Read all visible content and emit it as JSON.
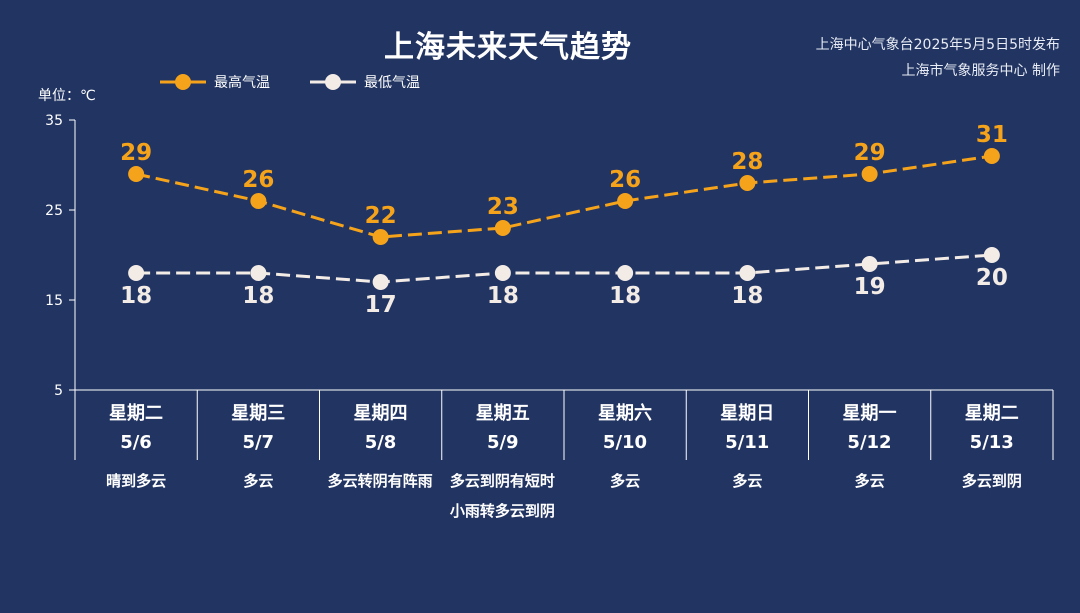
{
  "header": {
    "title": "上海未来天气趋势",
    "credit_line1": "上海中心气象台2025年5月5日5时发布",
    "credit_line2": "上海市气象服务中心 制作",
    "unit": "单位：℃"
  },
  "colors": {
    "background": "#223462",
    "high": "#f5a31a",
    "low": "#f3ebe6",
    "axis": "#ffffff"
  },
  "chart_data": {
    "type": "line",
    "title": "上海未来天气趋势",
    "ylabel": "单位：℃",
    "ylim": [
      5,
      35
    ],
    "yticks": [
      5,
      15,
      25,
      35
    ],
    "grid": false,
    "legend_position": "top-left",
    "categories": [
      "星期二 5/6",
      "星期三 5/7",
      "星期四 5/8",
      "星期五 5/9",
      "星期六 5/10",
      "星期日 5/11",
      "星期一 5/12",
      "星期二 5/13"
    ],
    "series": [
      {
        "name": "最高气温",
        "values": [
          29,
          26,
          22,
          23,
          26,
          28,
          29,
          31
        ],
        "color": "#f5a31a",
        "line_style": "dashed"
      },
      {
        "name": "最低气温",
        "values": [
          18,
          18,
          17,
          18,
          18,
          18,
          19,
          20
        ],
        "color": "#f3ebe6",
        "line_style": "dashed"
      }
    ]
  },
  "days": [
    {
      "weekday": "星期二",
      "date": "5/6",
      "weather": "晴到多云"
    },
    {
      "weekday": "星期三",
      "date": "5/7",
      "weather": "多云"
    },
    {
      "weekday": "星期四",
      "date": "5/8",
      "weather": "多云转阴有阵雨"
    },
    {
      "weekday": "星期五",
      "date": "5/9",
      "weather": "多云到阴有短时小雨转多云到阴"
    },
    {
      "weekday": "星期六",
      "date": "5/10",
      "weather": "多云"
    },
    {
      "weekday": "星期日",
      "date": "5/11",
      "weather": "多云"
    },
    {
      "weekday": "星期一",
      "date": "5/12",
      "weather": "多云"
    },
    {
      "weekday": "星期二",
      "date": "5/13",
      "weather": "多云到阴"
    }
  ]
}
